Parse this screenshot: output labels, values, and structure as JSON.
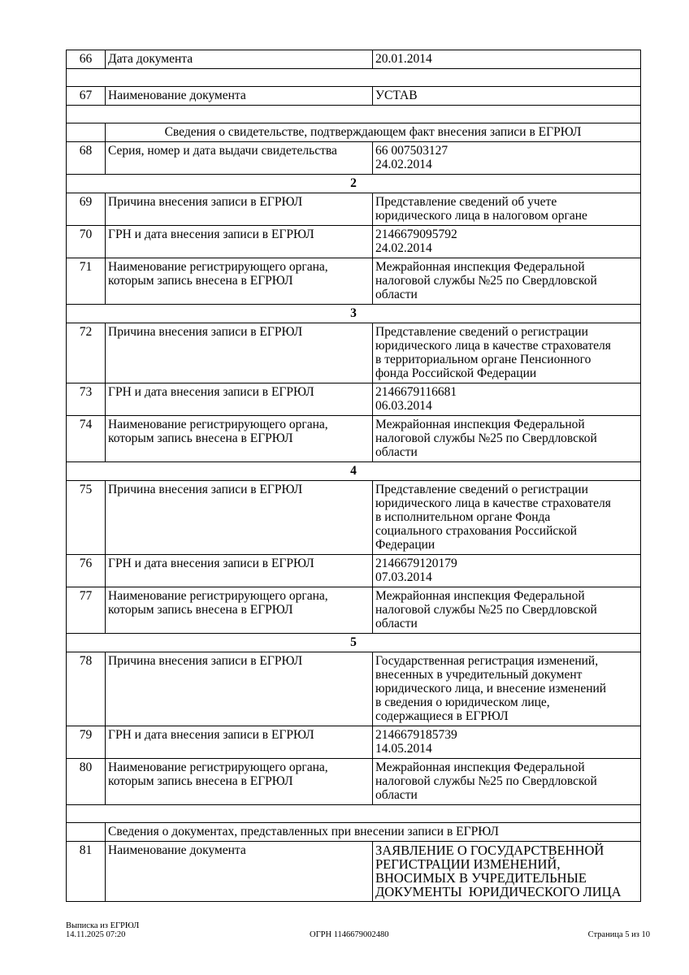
{
  "rows": [
    {
      "type": "row",
      "num": "66",
      "label": "Дата документа",
      "value": "20.01.2014"
    },
    {
      "type": "empty"
    },
    {
      "type": "row",
      "num": "67",
      "label": "Наименование документа",
      "value": "УСТАВ"
    },
    {
      "type": "empty"
    },
    {
      "type": "heading",
      "align": "center",
      "text": "Сведения о свидетельстве, подтверждающем факт внесения записи в ЕГРЮЛ"
    },
    {
      "type": "row",
      "num": "68",
      "label": "Серия, номер и дата выдачи свидетельства",
      "value": "66 007503127\n24.02.2014"
    },
    {
      "type": "section",
      "text": "2"
    },
    {
      "type": "row",
      "num": "69",
      "label": "Причина внесения записи в ЕГРЮЛ",
      "value": "Представление сведений об учете\nюридического лица в налоговом органе"
    },
    {
      "type": "row",
      "num": "70",
      "label": "ГРН и дата внесения записи в ЕГРЮЛ",
      "value": "2146679095792\n24.02.2014"
    },
    {
      "type": "row",
      "num": "71",
      "label": "Наименование регистрирующего органа,\nкоторым запись внесена в ЕГРЮЛ",
      "value": "Межрайонная инспекция Федеральной\nналоговой службы №25 по Свердловской\nобласти"
    },
    {
      "type": "section",
      "text": "3"
    },
    {
      "type": "row",
      "num": "72",
      "label": "Причина внесения записи в ЕГРЮЛ",
      "value": "Представление сведений о регистрации\nюридического лица в качестве страхователя\nв территориальном органе Пенсионного\nфонда Российской Федерации"
    },
    {
      "type": "row",
      "num": "73",
      "label": "ГРН и дата внесения записи в ЕГРЮЛ",
      "value": "2146679116681\n06.03.2014"
    },
    {
      "type": "row",
      "num": "74",
      "label": "Наименование регистрирующего органа,\nкоторым запись внесена в ЕГРЮЛ",
      "value": "Межрайонная инспекция Федеральной\nналоговой службы №25 по Свердловской\nобласти"
    },
    {
      "type": "section",
      "text": "4"
    },
    {
      "type": "row",
      "num": "75",
      "label": "Причина внесения записи в ЕГРЮЛ",
      "value": "Представление сведений о регистрации\nюридического лица в качестве страхователя\nв исполнительном органе Фонда\nсоциального страхования Российской\nФедерации"
    },
    {
      "type": "row",
      "num": "76",
      "label": "ГРН и дата внесения записи в ЕГРЮЛ",
      "value": "2146679120179\n07.03.2014"
    },
    {
      "type": "row",
      "num": "77",
      "label": "Наименование регистрирующего органа,\nкоторым запись внесена в ЕГРЮЛ",
      "value": "Межрайонная инспекция Федеральной\nналоговой службы №25 по Свердловской\nобласти"
    },
    {
      "type": "section",
      "text": "5"
    },
    {
      "type": "row",
      "num": "78",
      "label": "Причина внесения записи в ЕГРЮЛ",
      "value": "Государственная регистрация изменений,\nвнесенных в учредительный документ\nюридического лица, и внесение изменений\nв сведения о юридическом лице,\nсодержащиеся в ЕГРЮЛ"
    },
    {
      "type": "row",
      "num": "79",
      "label": "ГРН и дата внесения записи в ЕГРЮЛ",
      "value": "2146679185739\n14.05.2014"
    },
    {
      "type": "row",
      "num": "80",
      "label": "Наименование регистрирующего органа,\nкоторым запись внесена в ЕГРЮЛ",
      "value": "Межрайонная инспекция Федеральной\nналоговой службы №25 по Свердловской\nобласти"
    },
    {
      "type": "empty"
    },
    {
      "type": "heading",
      "align": "left",
      "text": "Сведения о документах, представленных при внесении записи в ЕГРЮЛ"
    },
    {
      "type": "row",
      "num": "81",
      "label": "Наименование документа",
      "value": "ЗАЯВЛЕНИЕ О ГОСУДАРСТВЕННОЙ\nРЕГИСТРАЦИИ ИЗМЕНЕНИЙ,\nВНОСИМЫХ В УЧРЕДИТЕЛЬНЫЕ\nДОКУМЕНТЫ  ЮРИДИЧЕСКОГО ЛИЦА",
      "big": true
    }
  ],
  "footer": {
    "left": "Выписка из ЕГРЮЛ\n14.11.2025 07:20",
    "center": "ОГРН 1146679002480",
    "right": "Страница 5 из 10"
  }
}
